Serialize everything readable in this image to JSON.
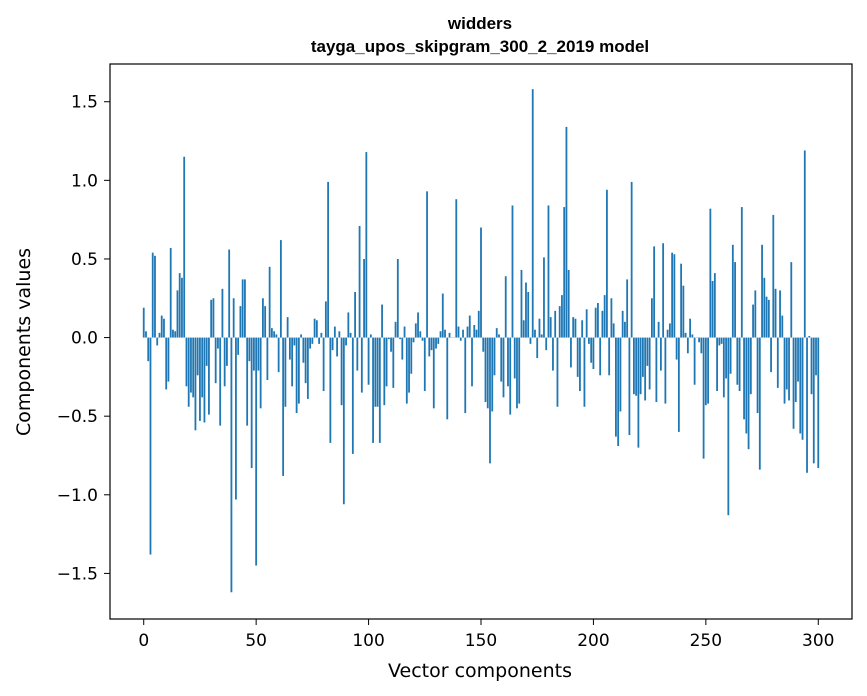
{
  "chart_data": {
    "type": "bar",
    "title_line1": "widders",
    "title_line2": "tayga_upos_skipgram_300_2_2019 model",
    "xlabel": "Vector components",
    "ylabel": "Components values",
    "xlim": [
      -15,
      315
    ],
    "ylim": [
      -1.79,
      1.74
    ],
    "xticks": [
      0,
      50,
      100,
      150,
      200,
      250,
      300
    ],
    "xtick_labels": [
      "0",
      "50",
      "100",
      "150",
      "200",
      "250",
      "300"
    ],
    "yticks": [
      -1.5,
      -1.0,
      -0.5,
      0.0,
      0.5,
      1.0,
      1.5
    ],
    "ytick_labels": [
      "−1.5",
      "−1.0",
      "−0.5",
      "0.0",
      "0.5",
      "1.0",
      "1.5"
    ],
    "bar_color": "#1f77b4",
    "values": [
      0.19,
      0.04,
      -0.15,
      -1.38,
      0.54,
      0.52,
      -0.05,
      0.03,
      0.14,
      0.12,
      -0.33,
      -0.28,
      0.57,
      0.05,
      0.04,
      0.3,
      0.41,
      0.38,
      1.15,
      -0.31,
      -0.44,
      -0.35,
      -0.38,
      -0.59,
      -0.24,
      -0.53,
      -0.38,
      -0.54,
      -0.18,
      -0.49,
      0.24,
      0.25,
      -0.29,
      -0.07,
      -0.56,
      0.31,
      -0.31,
      -0.18,
      0.56,
      -1.62,
      0.25,
      -1.03,
      -0.11,
      0.2,
      0.37,
      0.37,
      -0.56,
      -0.15,
      -0.83,
      -0.21,
      -1.45,
      -0.21,
      -0.45,
      0.25,
      0.2,
      -0.27,
      0.45,
      0.06,
      0.04,
      0.02,
      -0.22,
      0.62,
      -0.88,
      -0.44,
      0.13,
      -0.14,
      -0.31,
      -0.05,
      -0.48,
      -0.42,
      0.02,
      -0.16,
      -0.29,
      -0.39,
      -0.07,
      -0.04,
      0.12,
      0.11,
      -0.04,
      0.03,
      -0.34,
      0.23,
      0.99,
      -0.67,
      -0.08,
      0.07,
      -0.12,
      0.04,
      -0.43,
      -1.06,
      -0.05,
      0.16,
      0.03,
      -0.74,
      0.29,
      -0.21,
      0.71,
      -0.35,
      0.5,
      1.18,
      -0.3,
      0.02,
      -0.67,
      -0.44,
      -0.44,
      -0.67,
      0.21,
      -0.43,
      -0.31,
      -0.01,
      -0.09,
      -0.32,
      0.1,
      0.5,
      -0.01,
      -0.14,
      0.07,
      -0.42,
      -0.35,
      -0.23,
      -0.03,
      0.09,
      0.16,
      0.04,
      -0.02,
      -0.34,
      0.93,
      -0.12,
      -0.08,
      -0.45,
      -0.07,
      -0.04,
      0.04,
      0.28,
      0.05,
      -0.52,
      0.03,
      0.0,
      0.0,
      0.88,
      0.07,
      -0.02,
      0.05,
      -0.48,
      0.07,
      0.14,
      -0.31,
      0.08,
      0.05,
      0.17,
      0.7,
      -0.09,
      -0.41,
      -0.45,
      -0.8,
      -0.47,
      -0.24,
      0.06,
      0.02,
      -0.28,
      -0.38,
      0.39,
      -0.31,
      -0.49,
      0.84,
      -0.26,
      -0.45,
      -0.42,
      0.43,
      0.11,
      0.35,
      0.29,
      -0.04,
      1.58,
      0.05,
      -0.13,
      0.12,
      0.02,
      0.51,
      -0.08,
      0.84,
      0.13,
      -0.21,
      0.17,
      -0.44,
      0.2,
      0.27,
      0.83,
      1.34,
      0.43,
      -0.19,
      0.13,
      0.12,
      -0.25,
      -0.34,
      0.11,
      -0.44,
      0.18,
      -0.04,
      -0.16,
      -0.2,
      0.19,
      0.22,
      -0.24,
      0.17,
      0.27,
      0.94,
      -0.24,
      0.25,
      0.09,
      -0.63,
      -0.69,
      -0.47,
      0.17,
      0.1,
      0.37,
      -0.62,
      0.99,
      -0.36,
      -0.37,
      -0.7,
      -0.36,
      -0.25,
      -0.4,
      -0.18,
      -0.33,
      0.25,
      0.58,
      -0.41,
      0.1,
      -0.21,
      0.6,
      -0.42,
      0.05,
      0.09,
      0.54,
      0.53,
      -0.14,
      -0.6,
      0.47,
      0.33,
      0.03,
      -0.1,
      0.12,
      0.02,
      -0.3,
      0.0,
      -0.03,
      -0.1,
      -0.77,
      -0.43,
      -0.42,
      0.82,
      0.36,
      0.41,
      -0.34,
      -0.05,
      -0.04,
      -0.38,
      -0.26,
      -1.13,
      -0.23,
      0.59,
      0.48,
      -0.3,
      -0.34,
      0.83,
      -0.52,
      -0.61,
      -0.71,
      -0.36,
      0.21,
      0.3,
      -0.48,
      -0.84,
      0.59,
      0.38,
      0.26,
      0.24,
      -0.22,
      0.78,
      0.31,
      -0.32,
      0.3,
      0.14,
      -0.42,
      -0.33,
      -0.4,
      0.48,
      -0.58,
      -0.41,
      -0.28,
      -0.61,
      -0.65,
      1.19,
      -0.86,
      0.01,
      -0.36,
      -0.8,
      -0.24,
      -0.83
    ]
  }
}
